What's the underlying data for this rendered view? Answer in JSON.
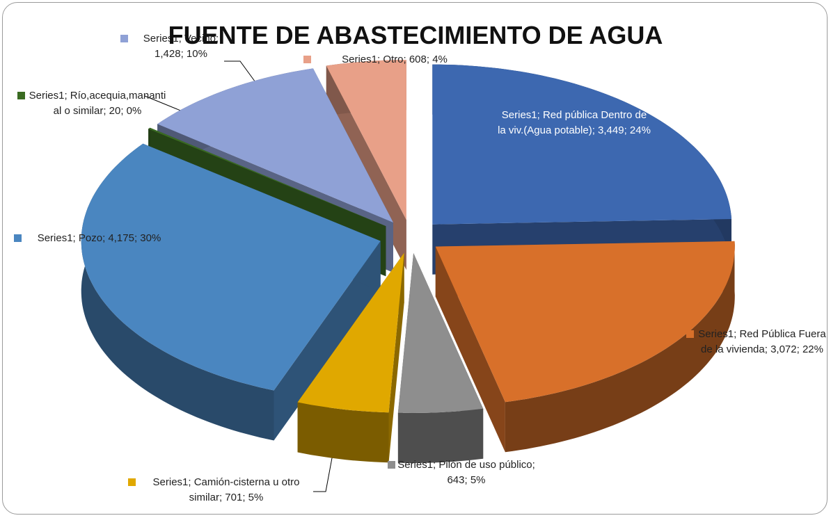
{
  "chart_data": {
    "type": "pie3d",
    "title": "FUENTE DE ABASTECIMIENTO DE AGUA",
    "series": [
      {
        "name": "Series1",
        "colors": [
          "#3d68b0",
          "#d8702a",
          "#8e8e8e",
          "#e0a800",
          "#4a86c0",
          "#3a6b22",
          "#8fa1d6",
          "#e8a088"
        ],
        "values": [
          3449,
          3072,
          643,
          701,
          4175,
          20,
          1428,
          608
        ],
        "value_labels": [
          "Series1;  Red pública Dentro de la viv.(Agua potable); 3,449; 24%",
          "Series1;  Red Pública Fuera de la vivienda; 3,072; 22%",
          "Series1;  Pilón de uso público; 643; 5%",
          "Series1;  Camión-cisterna u otro similar; 701; 5%",
          "Series1;  Pozo; 4,175; 30%",
          "Series1; Río,acequia,mananti al o similar; 20; 0%",
          "Series1;  Vecino; 1,428; 10%",
          "Series1;  Otro; 608; 4%"
        ]
      }
    ]
  }
}
